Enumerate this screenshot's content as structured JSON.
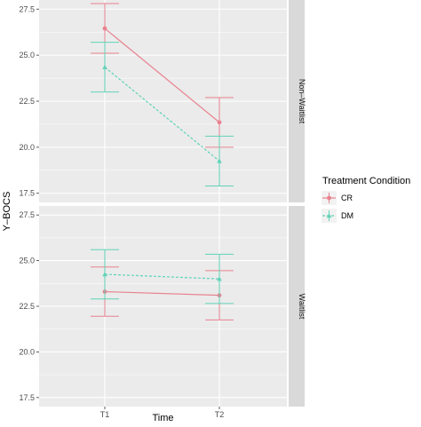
{
  "chart_data": {
    "type": "line",
    "xlabel": "Time",
    "ylabel": "Y–BOCS",
    "categories": [
      "T1",
      "T2"
    ],
    "ylim": [
      17.5,
      27.5
    ],
    "y_ticks": [
      "17.5",
      "20.0",
      "22.5",
      "25.0",
      "27.5"
    ],
    "grid": true,
    "legend": {
      "title": "Treatment Condition",
      "placement": "right",
      "entries": [
        "CR",
        "DM"
      ]
    },
    "colors": {
      "CR": "#e8828f",
      "DM": "#5fd3b8",
      "panel": "#ebebeb",
      "strip": "#d9d9d9"
    },
    "panels": [
      {
        "label": "Non–Waitlist",
        "series": [
          {
            "name": "CR",
            "values": [
              26.45,
              21.35
            ],
            "lower": [
              25.1,
              20.0
            ],
            "upper": [
              27.8,
              22.7
            ],
            "linestyle": "solid",
            "marker": "circle"
          },
          {
            "name": "DM",
            "values": [
              24.35,
              19.25
            ],
            "lower": [
              23.0,
              17.9
            ],
            "upper": [
              25.7,
              20.6
            ],
            "linestyle": "dashed",
            "marker": "triangle"
          }
        ]
      },
      {
        "label": "Waitlist",
        "series": [
          {
            "name": "CR",
            "values": [
              23.3,
              23.1
            ],
            "lower": [
              21.95,
              21.75
            ],
            "upper": [
              24.65,
              24.45
            ],
            "linestyle": "solid",
            "marker": "circle"
          },
          {
            "name": "DM",
            "values": [
              24.25,
              24.0
            ],
            "lower": [
              22.9,
              22.65
            ],
            "upper": [
              25.6,
              25.35
            ],
            "linestyle": "dashed",
            "marker": "triangle"
          }
        ]
      }
    ]
  }
}
